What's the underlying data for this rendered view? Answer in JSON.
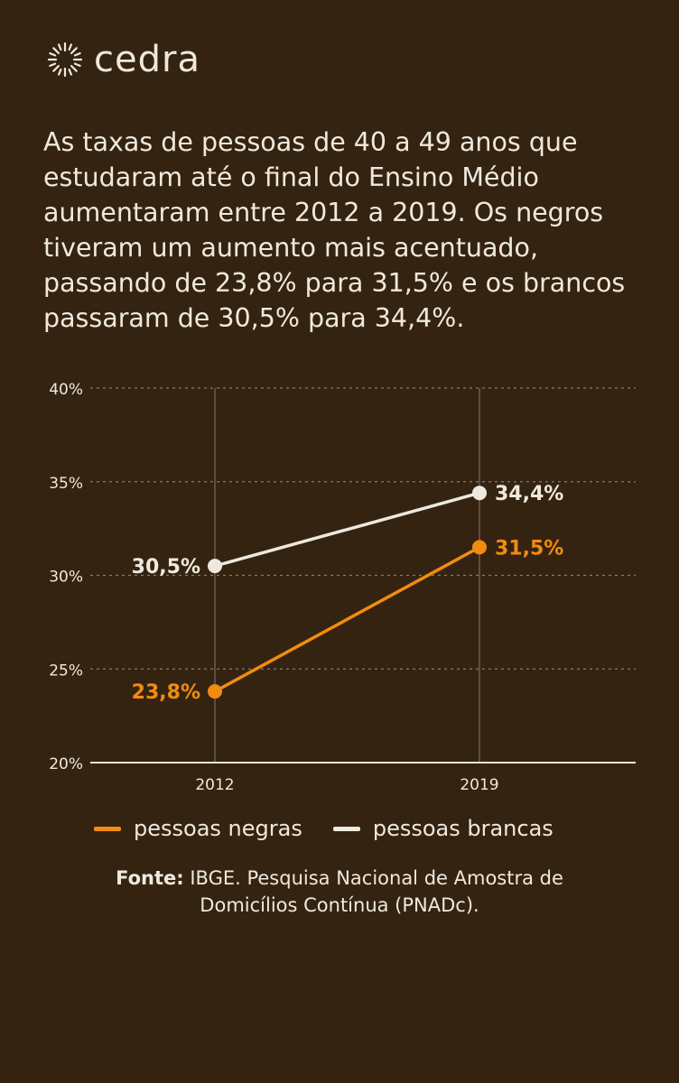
{
  "brand": {
    "name": "cedra"
  },
  "headline": "As taxas de pessoas de 40 a 49 anos que estudaram até o final do Ensino Médio aumentaram entre 2012 a 2019. Os negros tiveram um aumento mais acentuado, passando de 23,8% para 31,5% e os brancos passaram de 30,5% para 34,4%.",
  "chart_data": {
    "type": "line",
    "x": [
      "2012",
      "2019"
    ],
    "ylim": [
      20,
      40
    ],
    "yticks": [
      "20%",
      "25%",
      "30%",
      "35%",
      "40%"
    ],
    "grid": true,
    "legend_position": "bottom",
    "series": [
      {
        "name": "pessoas negras",
        "values": [
          23.8,
          31.5
        ],
        "labels": [
          "23,8%",
          "31,5%"
        ],
        "color": "#f28c0f"
      },
      {
        "name": "pessoas brancas",
        "values": [
          30.5,
          34.4
        ],
        "labels": [
          "30,5%",
          "34,4%"
        ],
        "color": "#efe9dd"
      }
    ]
  },
  "source": {
    "label": "Fonte:",
    "text": "IBGE. Pesquisa Nacional de Amostra de Domicílios Contínua (PNADc)."
  },
  "colors": {
    "background": "#352312",
    "text": "#efe9dd",
    "accent": "#f28c0f",
    "grid": "#8a7a68"
  }
}
